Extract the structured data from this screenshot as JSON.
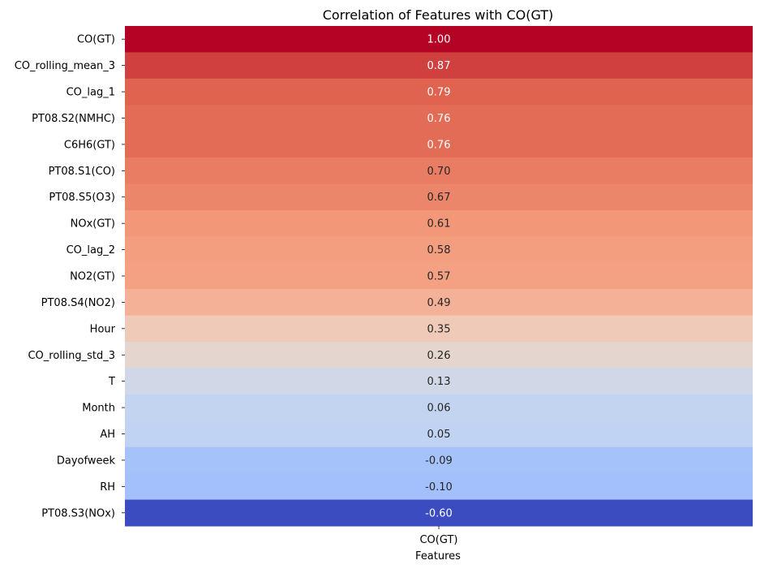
{
  "chart_data": {
    "type": "heatmap",
    "title": "Correlation of Features with CO(GT)",
    "xlabel": "Features",
    "ylabel": "",
    "columns": [
      "CO(GT)"
    ],
    "rows": [
      "CO(GT)",
      "CO_rolling_mean_3",
      "CO_lag_1",
      "PT08.S2(NMHC)",
      "C6H6(GT)",
      "PT08.S1(CO)",
      "PT08.S5(O3)",
      "NOx(GT)",
      "CO_lag_2",
      "NO2(GT)",
      "PT08.S4(NO2)",
      "Hour",
      "CO_rolling_std_3",
      "T",
      "Month",
      "AH",
      "Dayofweek",
      "RH",
      "PT08.S3(NOx)"
    ],
    "values": [
      1.0,
      0.87,
      0.79,
      0.76,
      0.76,
      0.7,
      0.67,
      0.61,
      0.58,
      0.57,
      0.49,
      0.35,
      0.26,
      0.13,
      0.06,
      0.05,
      -0.09,
      -0.1,
      -0.6
    ],
    "value_labels": [
      "1.00",
      "0.87",
      "0.79",
      "0.76",
      "0.76",
      "0.70",
      "0.67",
      "0.61",
      "0.58",
      "0.57",
      "0.49",
      "0.35",
      "0.26",
      "0.13",
      "0.06",
      "0.05",
      "-0.09",
      "-0.10",
      "-0.60"
    ],
    "colormap": "coolwarm",
    "vmin": -0.6,
    "vmax": 1.0,
    "colorbar": false
  }
}
